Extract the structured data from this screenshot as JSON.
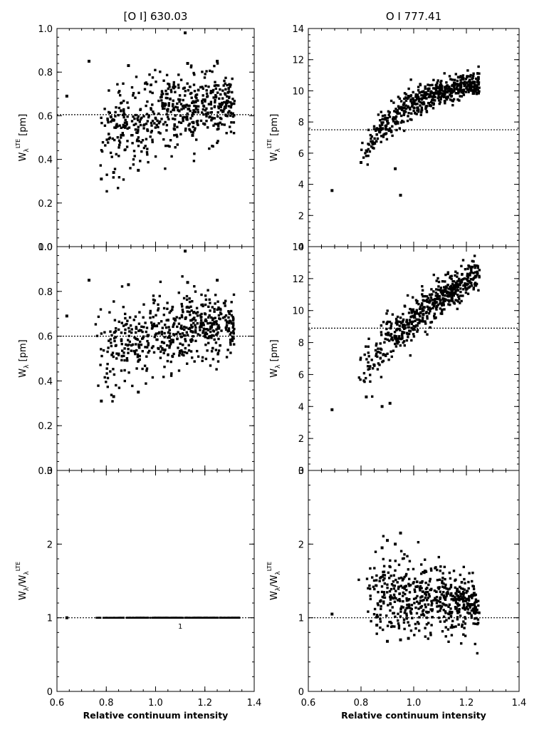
{
  "chart_data": [
    {
      "type": "scatter",
      "title": "[O I] 630.03",
      "ylabel_base": "W",
      "ylabel_sub": "λ",
      "ylabel_sup": "LTE",
      "ylabel_unit": "[pm]",
      "xlim": [
        0.6,
        1.4
      ],
      "ylim": [
        0.0,
        1.0
      ],
      "x_ticks": [
        0.6,
        0.8,
        1.0,
        1.2,
        1.4
      ],
      "y_ticks": [
        "0.0",
        "0.2",
        "0.4",
        "0.6",
        "0.8",
        "1.0"
      ],
      "y_tick_values": [
        0.0,
        0.2,
        0.4,
        0.6,
        0.8,
        1.0
      ],
      "reference_line": 0.605,
      "cloud": {
        "x_min": 0.7,
        "x_max": 1.32,
        "y_start": 0.5,
        "y_end": 0.66,
        "spread": 0.08,
        "curve": 0.6
      },
      "outliers": [
        {
          "x": 0.64,
          "y": 0.69
        },
        {
          "x": 0.73,
          "y": 0.85
        },
        {
          "x": 1.12,
          "y": 0.98
        },
        {
          "x": 1.13,
          "y": 0.84
        },
        {
          "x": 1.25,
          "y": 0.85
        },
        {
          "x": 0.78,
          "y": 0.31
        },
        {
          "x": 0.83,
          "y": 0.34
        },
        {
          "x": 0.93,
          "y": 0.35
        },
        {
          "x": 0.89,
          "y": 0.83
        },
        {
          "x": 1.15,
          "y": 0.51
        }
      ]
    },
    {
      "type": "scatter",
      "title": "O I 777.41",
      "ylabel_base": "W",
      "ylabel_sub": "λ",
      "ylabel_sup": "LTE",
      "ylabel_unit": "[pm]",
      "xlim": [
        0.6,
        1.4
      ],
      "ylim": [
        0,
        14
      ],
      "x_ticks": [
        0.6,
        0.8,
        1.0,
        1.2,
        1.4
      ],
      "y_ticks": [
        "0",
        "2",
        "4",
        "6",
        "8",
        "10",
        "12",
        "14"
      ],
      "y_tick_values": [
        0,
        2,
        4,
        6,
        8,
        10,
        12,
        14
      ],
      "reference_line": 7.5,
      "cloud": {
        "x_min": 0.76,
        "x_max": 1.25,
        "y_start": 4.5,
        "y_end": 10.4,
        "spread": 0.45,
        "curve": 1.4
      },
      "outliers": [
        {
          "x": 0.69,
          "y": 3.6
        },
        {
          "x": 0.95,
          "y": 3.3
        },
        {
          "x": 0.93,
          "y": 5.0
        },
        {
          "x": 0.8,
          "y": 5.4
        }
      ]
    },
    {
      "type": "scatter",
      "title": "",
      "ylabel_base": "W",
      "ylabel_sub": "λ",
      "ylabel_sup": "",
      "ylabel_unit": "[pm]",
      "xlim": [
        0.6,
        1.4
      ],
      "ylim": [
        0.0,
        1.0
      ],
      "x_ticks": [
        0.6,
        0.8,
        1.0,
        1.2,
        1.4
      ],
      "y_ticks": [
        "0.0",
        "0.2",
        "0.4",
        "0.6",
        "0.8",
        "1.0"
      ],
      "y_tick_values": [
        0.0,
        0.2,
        0.4,
        0.6,
        0.8,
        1.0
      ],
      "reference_line": 0.6,
      "cloud": {
        "x_min": 0.7,
        "x_max": 1.32,
        "y_start": 0.5,
        "y_end": 0.66,
        "spread": 0.08,
        "curve": 0.6
      },
      "outliers": [
        {
          "x": 0.64,
          "y": 0.69
        },
        {
          "x": 0.73,
          "y": 0.85
        },
        {
          "x": 1.12,
          "y": 0.98
        },
        {
          "x": 1.13,
          "y": 0.84
        },
        {
          "x": 1.25,
          "y": 0.85
        },
        {
          "x": 0.78,
          "y": 0.31
        },
        {
          "x": 0.83,
          "y": 0.33
        },
        {
          "x": 0.93,
          "y": 0.35
        },
        {
          "x": 0.89,
          "y": 0.83
        }
      ]
    },
    {
      "type": "scatter",
      "title": "",
      "ylabel_base": "W",
      "ylabel_sub": "λ",
      "ylabel_sup": "",
      "ylabel_unit": "[pm]",
      "xlim": [
        0.6,
        1.4
      ],
      "ylim": [
        0,
        14
      ],
      "x_ticks": [
        0.6,
        0.8,
        1.0,
        1.2,
        1.4
      ],
      "y_ticks": [
        "0",
        "2",
        "4",
        "6",
        "8",
        "10",
        "12",
        "14"
      ],
      "y_tick_values": [
        0,
        2,
        4,
        6,
        8,
        10,
        12,
        14
      ],
      "reference_line": 8.9,
      "cloud": {
        "x_min": 0.76,
        "x_max": 1.25,
        "y_start": 5.5,
        "y_end": 12.3,
        "spread": 0.6,
        "curve": 0.4
      },
      "outliers": [
        {
          "x": 0.69,
          "y": 3.8
        },
        {
          "x": 0.88,
          "y": 4.0
        },
        {
          "x": 0.91,
          "y": 4.2
        },
        {
          "x": 0.82,
          "y": 4.6
        }
      ]
    },
    {
      "type": "scatter",
      "title": "",
      "ylabel_base": "W",
      "ylabel_sub": "λ",
      "ylabel_sep": "/W",
      "ylabel_sub2": "λ",
      "ylabel_sup2": "LTE",
      "ylabel_unit": "",
      "xlabel": "Relative continuum intensity",
      "xlim": [
        0.6,
        1.4
      ],
      "ylim": [
        0,
        3
      ],
      "x_ticks": [
        0.6,
        0.8,
        1.0,
        1.2,
        1.4
      ],
      "y_ticks": [
        "0",
        "1",
        "2",
        "3"
      ],
      "y_tick_values": [
        0,
        1,
        2,
        3
      ],
      "reference_line": 1.0,
      "cloud": {
        "x_min": 0.7,
        "x_max": 1.34,
        "y_start": 1.0,
        "y_end": 1.0,
        "spread": 0.0,
        "curve": 0
      },
      "point_label": {
        "x": 1.1,
        "y": 0.95,
        "text": "1"
      },
      "outliers": [
        {
          "x": 0.64,
          "y": 1.0
        }
      ]
    },
    {
      "type": "scatter",
      "title": "",
      "ylabel_base": "W",
      "ylabel_sub": "λ",
      "ylabel_sep": "/W",
      "ylabel_sub2": "λ",
      "ylabel_sup2": "LTE",
      "ylabel_unit": "",
      "xlabel": "Relative continuum intensity",
      "xlim": [
        0.6,
        1.4
      ],
      "ylim": [
        0,
        3
      ],
      "x_ticks": [
        0.6,
        0.8,
        1.0,
        1.2,
        1.4
      ],
      "y_ticks": [
        "0",
        "1",
        "2",
        "3"
      ],
      "y_tick_values": [
        0,
        1,
        2,
        3
      ],
      "reference_line": 1.0,
      "cloud": {
        "x_min": 0.76,
        "x_max": 1.25,
        "y_start": 1.35,
        "y_end": 1.13,
        "spread": 0.22,
        "curve": -1.2
      },
      "outliers": [
        {
          "x": 0.69,
          "y": 1.05
        },
        {
          "x": 0.95,
          "y": 2.15
        },
        {
          "x": 0.88,
          "y": 1.95
        },
        {
          "x": 0.9,
          "y": 2.05
        },
        {
          "x": 0.93,
          "y": 2.0
        },
        {
          "x": 0.9,
          "y": 0.68
        },
        {
          "x": 0.95,
          "y": 0.7
        },
        {
          "x": 0.98,
          "y": 0.72
        },
        {
          "x": 0.86,
          "y": 0.9
        }
      ]
    }
  ]
}
